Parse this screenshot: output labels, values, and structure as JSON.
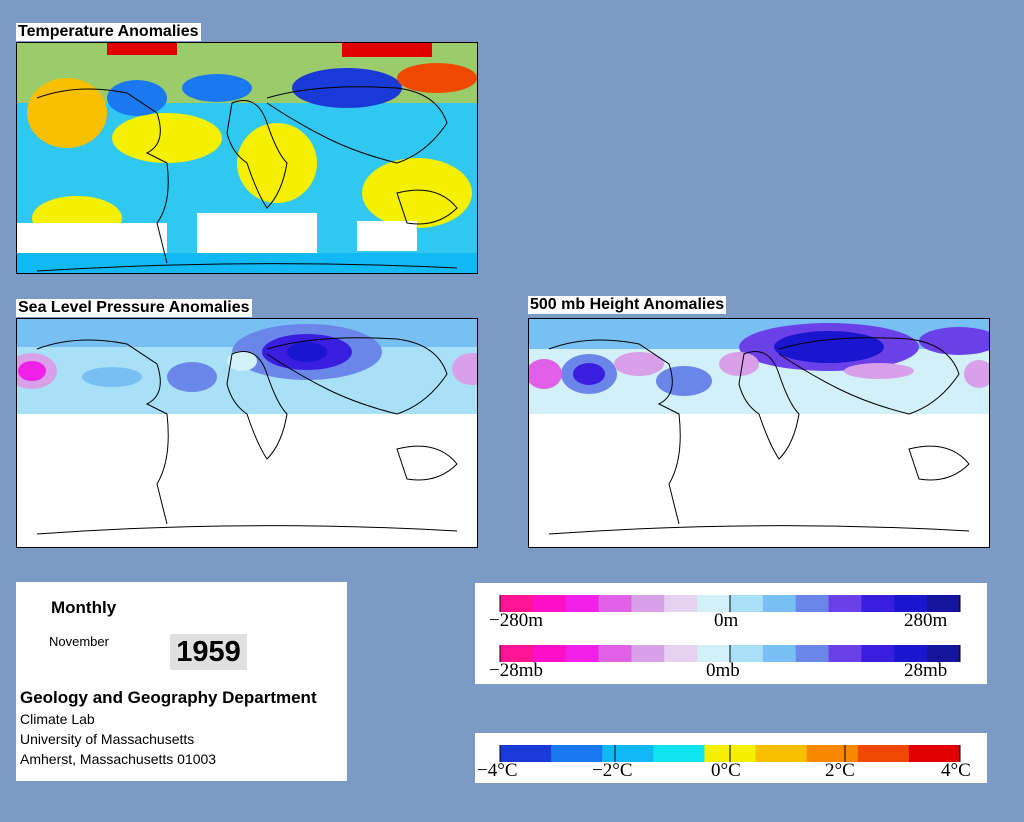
{
  "maps": {
    "temperature": {
      "title": "Temperature Anomalies"
    },
    "slp": {
      "title": "Sea Level Pressure Anomalies"
    },
    "height500": {
      "title": "500 mb Height Anomalies"
    }
  },
  "info": {
    "period": "Monthly",
    "month": "November",
    "year": "1959",
    "department": "Geology and Geography Department",
    "lines": [
      "Climate Lab",
      "University of Massachusetts",
      "Amherst, Massachusetts 01003"
    ]
  },
  "legends": {
    "height": {
      "labels": [
        "−280m",
        "0m",
        "280m"
      ]
    },
    "pressure": {
      "labels": [
        "−28mb",
        "0mb",
        "28mb"
      ]
    },
    "temperature": {
      "labels": [
        "−4°C",
        "−2°C",
        "0°C",
        "2°C",
        "4°C"
      ]
    }
  },
  "colors": {
    "background": "#7b9bc4",
    "pressure_scale": [
      "#ff1493",
      "#ff10c8",
      "#f020e8",
      "#e060e8",
      "#d8a0e8",
      "#e6d2f0",
      "#d2f0f8",
      "#a8e0f8",
      "#78c0f4",
      "#6a86e8",
      "#6a40e8",
      "#3a1ee0",
      "#1a16d0",
      "#14149c"
    ],
    "temperature_scale": [
      "#1a3ad8",
      "#1a78f0",
      "#10b8f4",
      "#10e4f0",
      "#f4f000",
      "#f8c000",
      "#f88800",
      "#f04800",
      "#e00000"
    ]
  }
}
